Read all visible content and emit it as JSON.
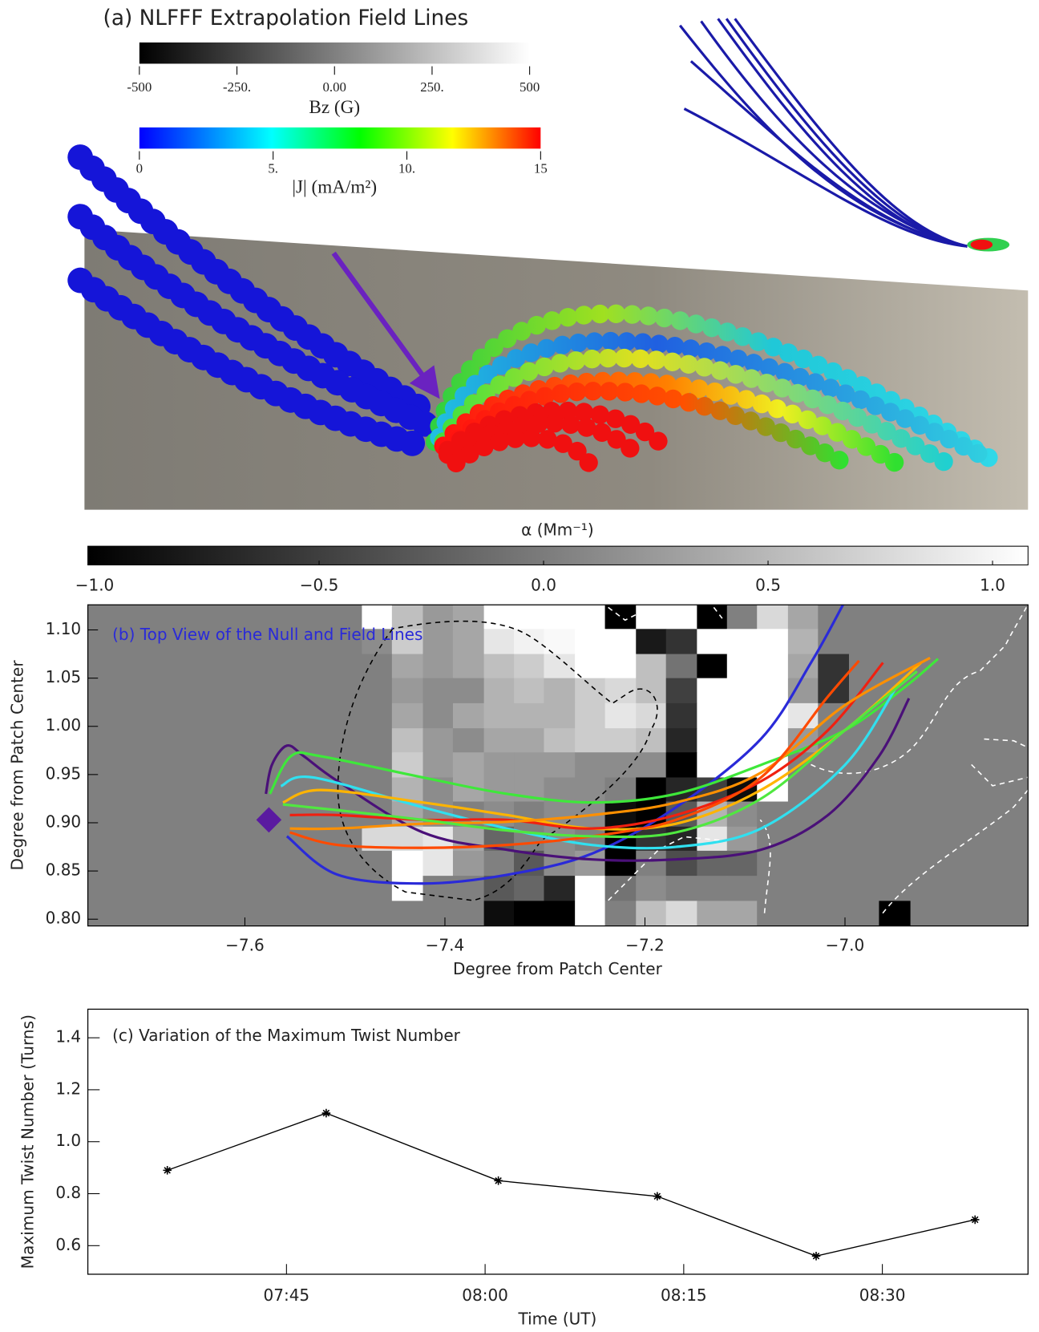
{
  "panel_a": {
    "title": "(a) NLFFF Extrapolation Field Lines",
    "bz_colorbar": {
      "label": "Bz (G)",
      "lim": [
        -500,
        500
      ],
      "ticks": [
        -500,
        {
          "value": -250,
          "label": "-250."
        },
        {
          "value": 0,
          "label": "0.00"
        },
        {
          "value": 250,
          "label": "250."
        },
        500
      ]
    },
    "j_colorbar": {
      "label": "|J|  (mA/m²)",
      "lim": [
        0,
        15
      ],
      "ticks": [
        0,
        {
          "value": 5,
          "label": "5."
        },
        {
          "value": 10,
          "label": "10."
        },
        15
      ]
    }
  },
  "chart_data": [
    {
      "type": "heatmap",
      "title": "(b) Top View of the Null and Field Lines",
      "x_label": "Degree from Patch Center",
      "y_label": "Degree from Patch Center",
      "colorbar": {
        "label": "α (Mm⁻¹)",
        "lim": [
          -1,
          1
        ],
        "ticks": [
          {
            "value": -1,
            "label": "−1.0"
          },
          {
            "value": -0.5,
            "label": "−0.5"
          },
          {
            "value": 0,
            "label": "0.0"
          },
          {
            "value": 0.5,
            "label": "0.5"
          },
          {
            "value": 1,
            "label": "1.0"
          }
        ]
      },
      "xlim": [
        -7.757,
        -6.817
      ],
      "ylim": [
        0.793,
        1.126
      ],
      "xticks": [
        {
          "value": -7.6,
          "label": "−7.6"
        },
        {
          "value": -7.4,
          "label": "−7.4"
        },
        {
          "value": -7.2,
          "label": "−7.2"
        },
        {
          "value": -7.0,
          "label": "−7.0"
        }
      ],
      "yticks": [
        {
          "value": 0.8,
          "label": "0.80"
        },
        0.85,
        {
          "value": 0.9,
          "label": "0.90"
        },
        0.95,
        {
          "value": 1,
          "label": "1.00"
        },
        1.05,
        {
          "value": 1.1,
          "label": "1.10"
        }
      ],
      "alpha": {
        "x_edges": [
          -7.483,
          -7.453,
          -7.422,
          -7.392,
          -7.361,
          -7.331,
          -7.301,
          -7.27,
          -7.24,
          -7.209,
          -7.179,
          -7.148,
          -7.118,
          -7.088,
          -7.057,
          -7.027,
          -6.996,
          -6.966,
          -6.935
        ],
        "y_edges": [
          1.126,
          1.101,
          1.075,
          1.05,
          1.024,
          0.998,
          0.973,
          0.947,
          0.922,
          0.896,
          0.871,
          0.845,
          0.819,
          0.794
        ],
        "values": [
          [
            1,
            0.5,
            0.2,
            0.3,
            1,
            1,
            1,
            1,
            -1,
            1,
            1,
            -1,
            0,
            0.7,
            0.3,
            0,
            0,
            0
          ],
          [
            0.1,
            0.6,
            0.2,
            0.3,
            0.8,
            0.9,
            0.95,
            1,
            1,
            -0.8,
            -0.6,
            1,
            1,
            1,
            0.4,
            0,
            0,
            0
          ],
          [
            0,
            0.3,
            0.2,
            0.3,
            0.5,
            0.6,
            0.8,
            1,
            1,
            0.5,
            -0.1,
            -1,
            1,
            1,
            0.3,
            -0.6,
            0,
            0
          ],
          [
            0,
            0.2,
            0.1,
            0.1,
            0.4,
            0.5,
            0.4,
            0.6,
            0.7,
            0.5,
            -0.5,
            1,
            1,
            1,
            0.2,
            -0.6,
            0,
            0
          ],
          [
            0,
            0.3,
            0.1,
            0.3,
            0.4,
            0.4,
            0.4,
            0.6,
            0.8,
            0.7,
            -0.6,
            1,
            1,
            1,
            0.8,
            0,
            0,
            0
          ],
          [
            0,
            0.5,
            0.2,
            0.1,
            0.3,
            0.3,
            0.5,
            0.6,
            0.6,
            0.5,
            -0.7,
            1,
            1,
            1,
            0.2,
            0,
            0,
            0
          ],
          [
            0,
            0.6,
            0.2,
            0.3,
            0.2,
            0.2,
            0.2,
            0.1,
            0.1,
            0.1,
            -1,
            1,
            1,
            1,
            0,
            0,
            0,
            0
          ],
          [
            0,
            0.4,
            0.1,
            0.3,
            0.2,
            0.2,
            0.1,
            0.1,
            0,
            -1,
            -0.7,
            -0.5,
            -0.9,
            1,
            0,
            0,
            0,
            0
          ],
          [
            0,
            0.3,
            0.1,
            0,
            0.1,
            0,
            0.1,
            0.1,
            -0.9,
            -1,
            -0.3,
            0.4,
            0.1,
            0,
            0,
            0,
            0,
            0
          ],
          [
            0.7,
            0.7,
            0.8,
            0.3,
            -0.2,
            0,
            0.1,
            0,
            -1,
            -0.6,
            -0.7,
            0.8,
            0.2,
            0,
            0,
            0,
            0,
            0
          ],
          [
            0,
            1,
            0.8,
            0.2,
            0,
            -0.3,
            0.1,
            0.2,
            -1,
            0,
            -0.4,
            -0.2,
            -0.2,
            0,
            0,
            0,
            0,
            0
          ],
          [
            0,
            1,
            0,
            0,
            -0.3,
            -0.2,
            -0.7,
            1,
            -0.1,
            0.1,
            0,
            0,
            0,
            0,
            0,
            0,
            0,
            0
          ],
          [
            0,
            0,
            0,
            0,
            -0.9,
            -1,
            -1,
            1,
            0,
            0.5,
            0.7,
            0.3,
            0.3,
            0,
            0,
            0,
            0,
            -1
          ]
        ]
      },
      "null_point": {
        "x": -7.576,
        "y": 0.903,
        "color": "#5a1aa0"
      },
      "field_lines": [
        {
          "color": "#2a2ad8",
          "x": [
            -7.558,
            -7.507,
            -7.422,
            -7.338,
            -7.253,
            -7.169,
            -7.084,
            -7.034,
            -7.002
          ],
          "y": [
            0.886,
            0.846,
            0.837,
            0.846,
            0.868,
            0.916,
            0.987,
            1.066,
            1.126
          ]
        },
        {
          "color": "#4a1078",
          "x": [
            -7.579,
            -7.573,
            -7.558,
            -7.541,
            -7.507,
            -7.422,
            -7.338,
            -7.253,
            -7.169,
            -7.084,
            -7.017,
            -6.966,
            -6.936
          ],
          "y": [
            0.93,
            0.96,
            0.98,
            0.969,
            0.943,
            0.89,
            0.872,
            0.862,
            0.862,
            0.872,
            0.908,
            0.969,
            1.029
          ]
        },
        {
          "color": "#3ee83a",
          "x": [
            -7.575,
            -7.554,
            -7.524,
            -7.422,
            -7.338,
            -7.253,
            -7.169,
            -7.084,
            -7.0,
            -6.941,
            -6.907
          ],
          "y": [
            0.93,
            0.969,
            0.969,
            0.947,
            0.93,
            0.921,
            0.93,
            0.96,
            0.996,
            1.04,
            1.07
          ]
        },
        {
          "color": "#30e0f0",
          "x": [
            -7.564,
            -7.532,
            -7.422,
            -7.338,
            -7.253,
            -7.169,
            -7.084,
            -7.0,
            -6.949
          ],
          "y": [
            0.938,
            0.947,
            0.916,
            0.894,
            0.877,
            0.875,
            0.894,
            0.96,
            1.04
          ]
        },
        {
          "color": "#ffb400",
          "x": [
            -7.562,
            -7.524,
            -7.422,
            -7.338,
            -7.253,
            -7.169,
            -7.084,
            -7.0,
            -6.924
          ],
          "y": [
            0.921,
            0.934,
            0.921,
            0.908,
            0.894,
            0.899,
            0.934,
            0.996,
            1.066
          ]
        },
        {
          "color": "#f02010",
          "x": [
            -7.555,
            -7.507,
            -7.422,
            -7.338,
            -7.253,
            -7.169,
            -7.084,
            -7.017,
            -6.962
          ],
          "y": [
            0.908,
            0.908,
            0.903,
            0.903,
            0.894,
            0.908,
            0.943,
            0.996,
            1.066
          ]
        },
        {
          "color": "#ff9000",
          "x": [
            -7.555,
            -7.507,
            -7.422,
            -7.338,
            -7.253,
            -7.169,
            -7.084,
            -7.0,
            -6.915
          ],
          "y": [
            0.894,
            0.894,
            0.899,
            0.901,
            0.908,
            0.921,
            0.952,
            1.022,
            1.071
          ]
        },
        {
          "color": "#ff4a00",
          "x": [
            -7.555,
            -7.507,
            -7.422,
            -7.338,
            -7.253,
            -7.169,
            -7.084,
            -7.017,
            -6.986
          ],
          "y": [
            0.89,
            0.877,
            0.874,
            0.877,
            0.886,
            0.903,
            0.947,
            1.031,
            1.068
          ]
        },
        {
          "color": "#50e840",
          "x": [
            -7.562,
            -7.507,
            -7.422,
            -7.338,
            -7.253,
            -7.169,
            -7.084,
            -7.0,
            -6.928
          ],
          "y": [
            0.919,
            0.913,
            0.903,
            0.892,
            0.886,
            0.89,
            0.925,
            0.996,
            1.057
          ]
        }
      ]
    },
    {
      "type": "line",
      "title": "(c) Variation of the Maximum Twist Number",
      "x_label": "Time (UT)",
      "y_label": "Maximum Twist Number (Turns)",
      "x": [
        "07:36",
        "07:48",
        "08:01",
        "08:13",
        "08:25",
        "08:37"
      ],
      "values": [
        0.89,
        1.11,
        0.85,
        0.79,
        0.56,
        0.7
      ],
      "color": "#000000",
      "xlim": [
        "07:30",
        "08:41"
      ],
      "xticks": [
        "07:45",
        "08:00",
        "08:15",
        "08:30"
      ],
      "ylim": [
        0.49,
        1.51
      ],
      "yticks": [
        0.6,
        0.8,
        {
          "value": 1,
          "label": "1.0"
        },
        1.2,
        1.4
      ]
    }
  ]
}
